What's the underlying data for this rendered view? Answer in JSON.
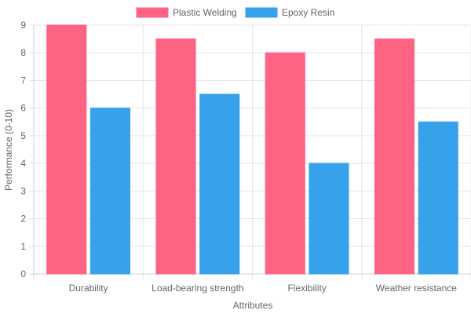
{
  "chart_data": {
    "type": "bar",
    "categories": [
      "Durability",
      "Load-bearing strength",
      "Flexibility",
      "Weather resistance"
    ],
    "series": [
      {
        "name": "Plastic Welding",
        "values": [
          9,
          8.5,
          8,
          8.5
        ],
        "color": "#ff6384"
      },
      {
        "name": "Epoxy Resin",
        "values": [
          6,
          6.5,
          4,
          5.5
        ],
        "color": "#36a2eb"
      }
    ],
    "xlabel": "Attributes",
    "ylabel": "Performance (0-10)",
    "ylim": [
      0,
      9
    ],
    "yticks": [
      0,
      1,
      2,
      3,
      4,
      5,
      6,
      7,
      8,
      9
    ],
    "grid": true,
    "legend_position": "top-center"
  }
}
